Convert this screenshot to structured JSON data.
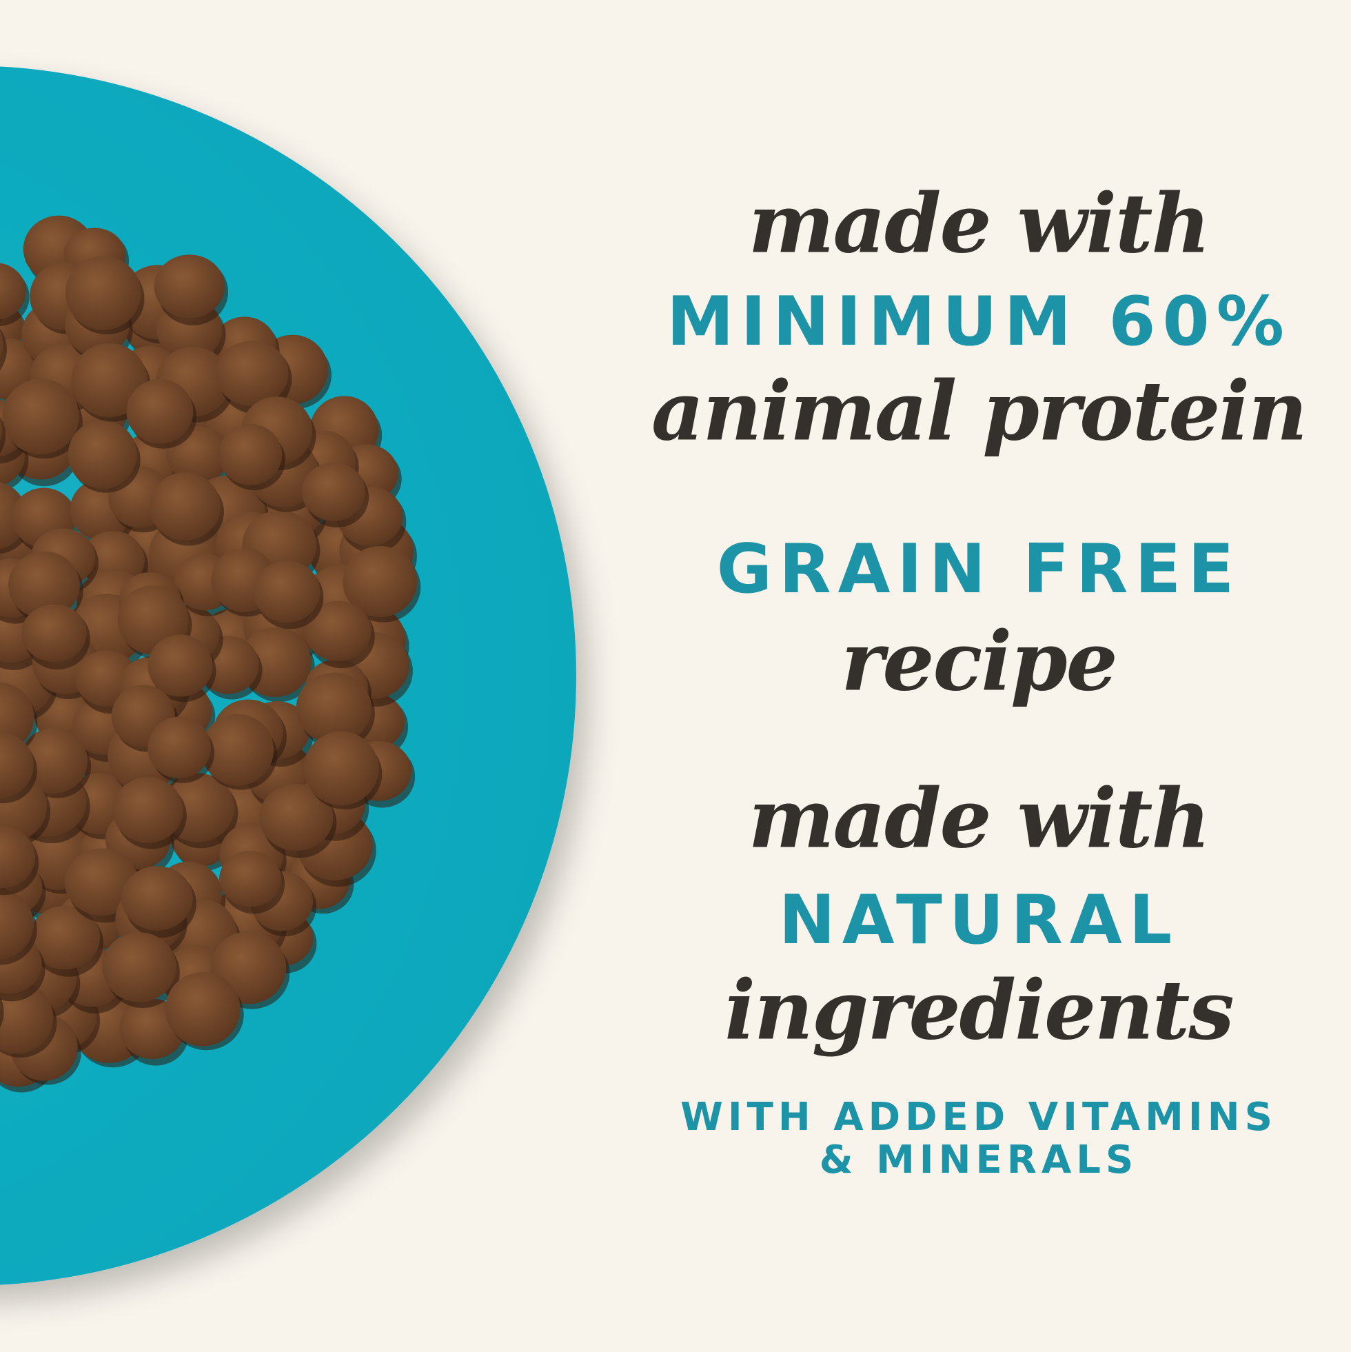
{
  "lines": [
    "made with",
    "MINIMUM 60%",
    "animal protein",
    "GRAIN FREE",
    "recipe",
    "made with",
    "NATURAL",
    "ingredients",
    "WITH ADDED VITAMINS",
    "& MINERALS"
  ]
}
